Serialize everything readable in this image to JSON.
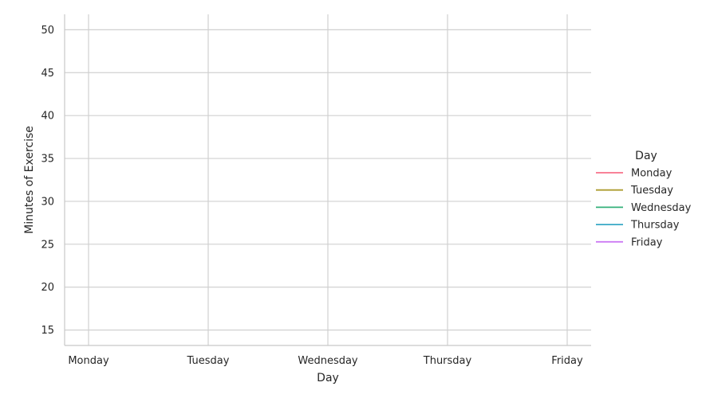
{
  "chart_data": {
    "type": "line",
    "categories": [
      "Monday",
      "Tuesday",
      "Wednesday",
      "Thursday",
      "Friday"
    ],
    "xlabel": "Day",
    "ylabel": "Minutes of Exercise",
    "yticks": [
      15,
      20,
      25,
      30,
      35,
      40,
      45,
      50
    ],
    "ylim": [
      13.2,
      51.8
    ],
    "grid": true,
    "legend": {
      "title": "Day",
      "placement": "right",
      "entries": [
        {
          "name": "Monday",
          "color": "#f77189"
        },
        {
          "name": "Tuesday",
          "color": "#ae9d31"
        },
        {
          "name": "Wednesday",
          "color": "#33b07a"
        },
        {
          "name": "Thursday",
          "color": "#38a9c5"
        },
        {
          "name": "Friday",
          "color": "#cc7af4"
        }
      ]
    },
    "series": []
  }
}
